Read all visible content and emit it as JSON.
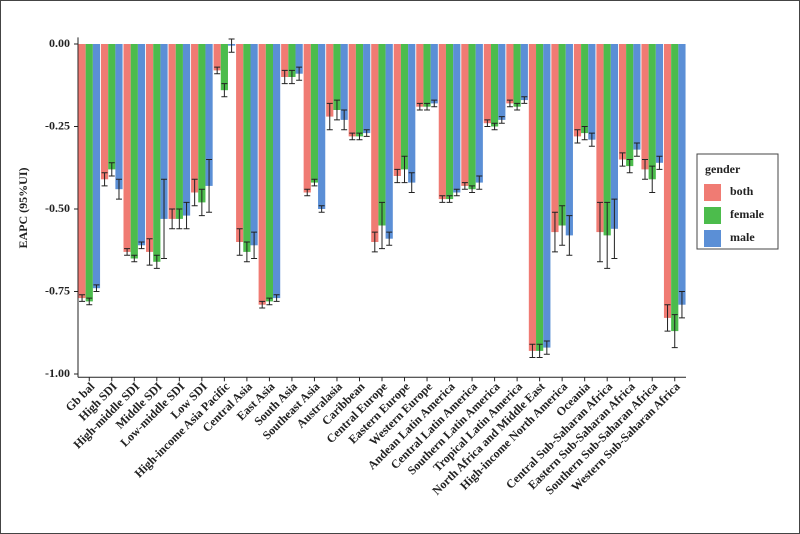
{
  "chart_data": {
    "type": "bar",
    "y_label": "EAPC (95%UI)",
    "legend_title": "gender",
    "legend_position": "right",
    "categories": [
      "Gb bal",
      "High SDI",
      "High-middle SDI",
      "Middle SDI",
      "Low-middle SDI",
      "Low SDI",
      "High-income Asia Pacific",
      "Central Asia",
      "East Asia",
      "South Asia",
      "Southeast Asia",
      "Australasia",
      "Caribbean",
      "Central Europe",
      "Eastern Europe",
      "Western Europe",
      "Andean Latin America",
      "Central Latin America",
      "Southern Latin America",
      "Tropical Latin America",
      "North Africa and Middle East",
      "High-income North America",
      "Oceania",
      "Central Sub-Saharan Africa",
      "Eastern Sub-Saharan Africa",
      "Southern Sub-Saharan Africa",
      "Western Sub-Saharan Africa"
    ],
    "series": [
      {
        "name": "both",
        "color": "#f07b73",
        "values": [
          -0.77,
          -0.41,
          -0.63,
          -0.63,
          -0.53,
          -0.45,
          -0.08,
          -0.6,
          -0.79,
          -0.1,
          -0.45,
          -0.22,
          -0.28,
          -0.6,
          -0.4,
          -0.19,
          -0.47,
          -0.43,
          -0.24,
          -0.18,
          -0.93,
          -0.57,
          -0.28,
          -0.57,
          -0.35,
          -0.38,
          -0.83
        ],
        "errors": [
          0.01,
          0.02,
          0.01,
          0.04,
          0.03,
          0.04,
          0.01,
          0.04,
          0.01,
          0.02,
          0.01,
          0.04,
          0.01,
          0.03,
          0.02,
          0.01,
          0.01,
          0.01,
          0.01,
          0.01,
          0.02,
          0.06,
          0.02,
          0.09,
          0.02,
          0.03,
          0.04
        ]
      },
      {
        "name": "female",
        "color": "#4cbc4c",
        "values": [
          -0.78,
          -0.38,
          -0.65,
          -0.66,
          -0.53,
          -0.48,
          -0.14,
          -0.63,
          -0.78,
          -0.1,
          -0.42,
          -0.2,
          -0.28,
          -0.55,
          -0.38,
          -0.19,
          -0.47,
          -0.44,
          -0.25,
          -0.19,
          -0.93,
          -0.55,
          -0.27,
          -0.58,
          -0.37,
          -0.41,
          -0.87
        ],
        "errors": [
          0.01,
          0.02,
          0.01,
          0.02,
          0.03,
          0.04,
          0.02,
          0.03,
          0.01,
          0.02,
          0.01,
          0.03,
          0.01,
          0.07,
          0.04,
          0.01,
          0.01,
          0.01,
          0.01,
          0.01,
          0.02,
          0.06,
          0.02,
          0.1,
          0.02,
          0.04,
          0.05
        ]
      },
      {
        "name": "male",
        "color": "#5b8fd6",
        "values": [
          -0.74,
          -0.44,
          -0.61,
          -0.53,
          -0.52,
          -0.43,
          -0.005,
          -0.61,
          -0.77,
          -0.09,
          -0.5,
          -0.23,
          -0.27,
          -0.59,
          -0.42,
          -0.18,
          -0.45,
          -0.42,
          -0.23,
          -0.17,
          -0.92,
          -0.58,
          -0.29,
          -0.56,
          -0.32,
          -0.36,
          -0.79
        ],
        "errors": [
          0.01,
          0.03,
          0.01,
          0.12,
          0.04,
          0.08,
          0.02,
          0.04,
          0.01,
          0.02,
          0.01,
          0.03,
          0.01,
          0.02,
          0.03,
          0.01,
          0.01,
          0.02,
          0.01,
          0.01,
          0.02,
          0.06,
          0.02,
          0.09,
          0.02,
          0.02,
          0.04
        ]
      }
    ],
    "ylim": [
      -1.01,
      0.02
    ],
    "yticks": [
      {
        "value": 0,
        "label": "0.00"
      },
      -0.25,
      {
        "value": -0.5,
        "label": "-0.50"
      },
      -0.75,
      {
        "value": -1,
        "label": "-1.00"
      }
    ]
  }
}
